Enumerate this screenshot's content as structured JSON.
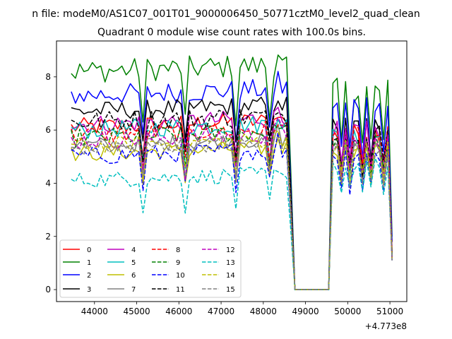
{
  "chart_data": {
    "type": "line",
    "suptitle": "n file: modeM0/AS1C07_001T01_9000006450_50771cztM0_level2_quad_clean",
    "title": "Quadrant 0 module wise count rates with 100.0s bins.",
    "xlabel": "",
    "ylabel": "",
    "x_offset_label": "+4.773e8",
    "xlim": [
      43100,
      51400
    ],
    "ylim": [
      -0.45,
      9.35
    ],
    "x_ticks": [
      44000,
      45000,
      46000,
      47000,
      48000,
      49000,
      50000,
      51000
    ],
    "x_tick_labels": [
      "44000",
      "45000",
      "46000",
      "47000",
      "48000",
      "49000",
      "50000",
      "51000"
    ],
    "y_ticks": [
      0,
      2,
      4,
      6,
      8
    ],
    "y_tick_labels": [
      "0",
      "2",
      "4",
      "6",
      "8"
    ],
    "legend_location": "lower-left",
    "segment1": {
      "x_start": 43450,
      "x_end": 48550,
      "step": 100
    },
    "dropoff": {
      "x": [
        48650,
        48750
      ],
      "zero_start": 48750,
      "zero_end": 49550
    },
    "segment2": {
      "x_start": 49550,
      "x_end": 51050,
      "step": 100
    },
    "series": [
      {
        "name": "0",
        "color": "#ff0000",
        "dash": "solid",
        "level1": 6.1,
        "level2": 5.9,
        "amp": 0.35,
        "dip": 1.3,
        "end": 1.5
      },
      {
        "name": "1",
        "color": "#008000",
        "dash": "solid",
        "level1": 8.2,
        "level2": 7.5,
        "amp": 0.45,
        "dip": 2.0,
        "end": 2.0
      },
      {
        "name": "2",
        "color": "#0000ff",
        "dash": "solid",
        "level1": 7.3,
        "level2": 7.0,
        "amp": 0.4,
        "dip": 1.8,
        "end": 1.8
      },
      {
        "name": "3",
        "color": "#000000",
        "dash": "solid",
        "level1": 6.7,
        "level2": 6.2,
        "amp": 0.35,
        "dip": 1.5,
        "end": 1.4
      },
      {
        "name": "4",
        "color": "#bf00bf",
        "dash": "solid",
        "level1": 6.2,
        "level2": 6.0,
        "amp": 0.35,
        "dip": 1.4,
        "end": 1.3
      },
      {
        "name": "5",
        "color": "#00bfbf",
        "dash": "solid",
        "level1": 6.0,
        "level2": 5.8,
        "amp": 0.35,
        "dip": 1.4,
        "end": 1.2
      },
      {
        "name": "6",
        "color": "#bfbf00",
        "dash": "solid",
        "level1": 5.1,
        "level2": 5.3,
        "amp": 0.3,
        "dip": 1.2,
        "end": 1.1
      },
      {
        "name": "7",
        "color": "#808080",
        "dash": "solid",
        "level1": 5.4,
        "level2": 5.5,
        "amp": 0.3,
        "dip": 1.2,
        "end": 1.2
      },
      {
        "name": "8",
        "color": "#ff0000",
        "dash": "dashed",
        "level1": 5.8,
        "level2": 5.8,
        "amp": 0.35,
        "dip": 1.3,
        "end": 1.3
      },
      {
        "name": "9",
        "color": "#008000",
        "dash": "dashed",
        "level1": 5.7,
        "level2": 5.6,
        "amp": 0.35,
        "dip": 1.3,
        "end": 1.2
      },
      {
        "name": "10",
        "color": "#0000ff",
        "dash": "dashed",
        "level1": 5.0,
        "level2": 5.1,
        "amp": 0.35,
        "dip": 1.2,
        "end": 1.1
      },
      {
        "name": "11",
        "color": "#000000",
        "dash": "dashed",
        "level1": 6.3,
        "level2": 6.0,
        "amp": 0.4,
        "dip": 1.4,
        "end": 1.3
      },
      {
        "name": "12",
        "color": "#bf00bf",
        "dash": "dashed",
        "level1": 5.6,
        "level2": 5.6,
        "amp": 0.35,
        "dip": 1.3,
        "end": 1.2
      },
      {
        "name": "13",
        "color": "#00bfbf",
        "dash": "dashed",
        "level1": 4.1,
        "level2": 4.7,
        "amp": 0.3,
        "dip": 1.1,
        "end": 1.3
      },
      {
        "name": "14",
        "color": "#bfbf00",
        "dash": "dashed",
        "level1": 5.4,
        "level2": 5.4,
        "amp": 0.3,
        "dip": 1.2,
        "end": 1.2
      },
      {
        "name": "15",
        "color": "#808080",
        "dash": "dashed",
        "level1": 5.3,
        "level2": 5.3,
        "amp": 0.3,
        "dip": 1.2,
        "end": 1.1
      }
    ]
  }
}
